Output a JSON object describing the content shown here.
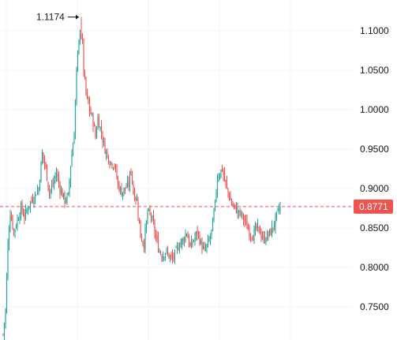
{
  "chart_data": {
    "type": "candlestick",
    "y_ticks": [
      "1.1000",
      "1.0500",
      "1.0000",
      "0.9500",
      "0.9000",
      "0.8500",
      "0.8000",
      "0.7500"
    ],
    "y_tick_values": [
      1.1,
      1.05,
      1.0,
      0.95,
      0.9,
      0.85,
      0.8,
      0.75
    ],
    "ylim": [
      0.7,
      1.12
    ],
    "max_marker": {
      "label": "1.1174",
      "value": 1.1174
    },
    "current_price": {
      "label": "0.8771",
      "value": 0.8771
    },
    "colors": {
      "up": "#26a69a",
      "down": "#ef5350",
      "price_line": "#ef5350",
      "grid": "#f0f3fa"
    },
    "close_path": [
      [
        0,
        0.715
      ],
      [
        2,
        0.745
      ],
      [
        4,
        0.83
      ],
      [
        6,
        0.87
      ],
      [
        9,
        0.845
      ],
      [
        12,
        0.86
      ],
      [
        15,
        0.875
      ],
      [
        18,
        0.865
      ],
      [
        22,
        0.88
      ],
      [
        26,
        0.89
      ],
      [
        30,
        0.9
      ],
      [
        33,
        0.945
      ],
      [
        36,
        0.925
      ],
      [
        39,
        0.895
      ],
      [
        42,
        0.905
      ],
      [
        45,
        0.92
      ],
      [
        48,
        0.9
      ],
      [
        52,
        0.885
      ],
      [
        55,
        0.89
      ],
      [
        57,
        0.93
      ],
      [
        60,
        0.97
      ],
      [
        62,
        1.05
      ],
      [
        64,
        1.085
      ],
      [
        66,
        1.1174
      ],
      [
        68,
        1.05
      ],
      [
        70,
        1.02
      ],
      [
        73,
        1.0
      ],
      [
        76,
        0.985
      ],
      [
        78,
        0.965
      ],
      [
        80,
        0.99
      ],
      [
        83,
        0.97
      ],
      [
        86,
        0.95
      ],
      [
        90,
        0.935
      ],
      [
        94,
        0.93
      ],
      [
        97,
        0.905
      ],
      [
        100,
        0.895
      ],
      [
        103,
        0.9
      ],
      [
        106,
        0.905
      ],
      [
        108,
        0.925
      ],
      [
        110,
        0.895
      ],
      [
        113,
        0.885
      ],
      [
        116,
        0.84
      ],
      [
        119,
        0.83
      ],
      [
        122,
        0.87
      ],
      [
        125,
        0.865
      ],
      [
        128,
        0.845
      ],
      [
        131,
        0.825
      ],
      [
        134,
        0.815
      ],
      [
        137,
        0.82
      ],
      [
        140,
        0.815
      ],
      [
        143,
        0.81
      ],
      [
        146,
        0.82
      ],
      [
        149,
        0.83
      ],
      [
        152,
        0.835
      ],
      [
        155,
        0.845
      ],
      [
        158,
        0.825
      ],
      [
        161,
        0.835
      ],
      [
        164,
        0.845
      ],
      [
        167,
        0.83
      ],
      [
        170,
        0.82
      ],
      [
        173,
        0.83
      ],
      [
        176,
        0.845
      ],
      [
        179,
        0.88
      ],
      [
        181,
        0.915
      ],
      [
        183,
        0.92
      ],
      [
        185,
        0.925
      ],
      [
        187,
        0.91
      ],
      [
        190,
        0.895
      ],
      [
        193,
        0.88
      ],
      [
        196,
        0.875
      ],
      [
        199,
        0.87
      ],
      [
        202,
        0.865
      ],
      [
        205,
        0.855
      ],
      [
        208,
        0.845
      ],
      [
        211,
        0.84
      ],
      [
        214,
        0.85
      ],
      [
        217,
        0.845
      ],
      [
        220,
        0.835
      ],
      [
        223,
        0.84
      ],
      [
        226,
        0.845
      ],
      [
        229,
        0.855
      ],
      [
        232,
        0.87
      ],
      [
        234,
        0.8771
      ]
    ]
  }
}
